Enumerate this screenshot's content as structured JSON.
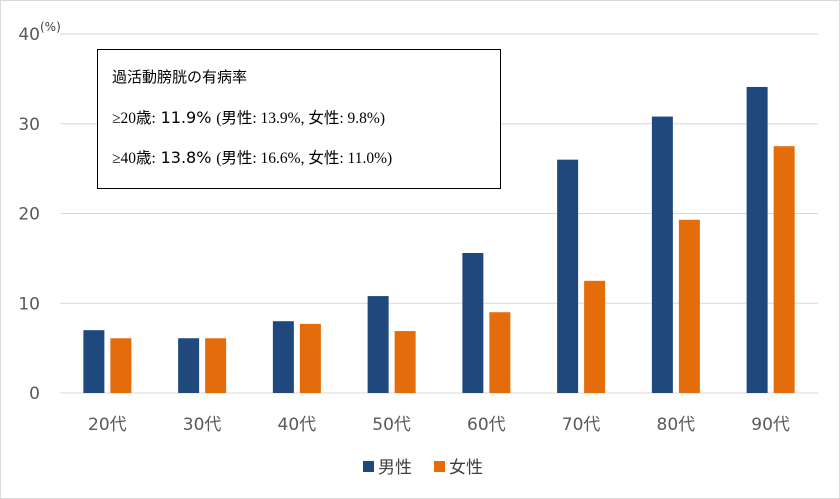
{
  "chart_data": {
    "type": "bar",
    "unit_label": "(%)",
    "categories": [
      "20代",
      "30代",
      "40代",
      "50代",
      "60代",
      "70代",
      "80代",
      "90代"
    ],
    "series": [
      {
        "name": "男性",
        "color": "#1f497d",
        "values": [
          7.0,
          6.1,
          8.0,
          10.8,
          15.6,
          26.0,
          30.8,
          34.1
        ]
      },
      {
        "name": "女性",
        "color": "#e46c0a",
        "values": [
          6.1,
          6.1,
          7.7,
          6.9,
          9.0,
          12.5,
          19.3,
          27.5
        ]
      }
    ],
    "yticks": [
      0,
      10,
      20,
      30,
      40
    ],
    "ylim": [
      0,
      40
    ],
    "grid": true,
    "legend_position": "bottom",
    "annotation": {
      "title": "過活動膀胱の有病率",
      "rows": [
        {
          "group": "≥20歳:",
          "overall": "11.9%",
          "detail": "(男性: 13.9%, 女性: 9.8%)"
        },
        {
          "group": "≥40歳:",
          "overall": "13.8%",
          "detail": "(男性: 16.6%, 女性: 11.0%)"
        }
      ]
    }
  }
}
